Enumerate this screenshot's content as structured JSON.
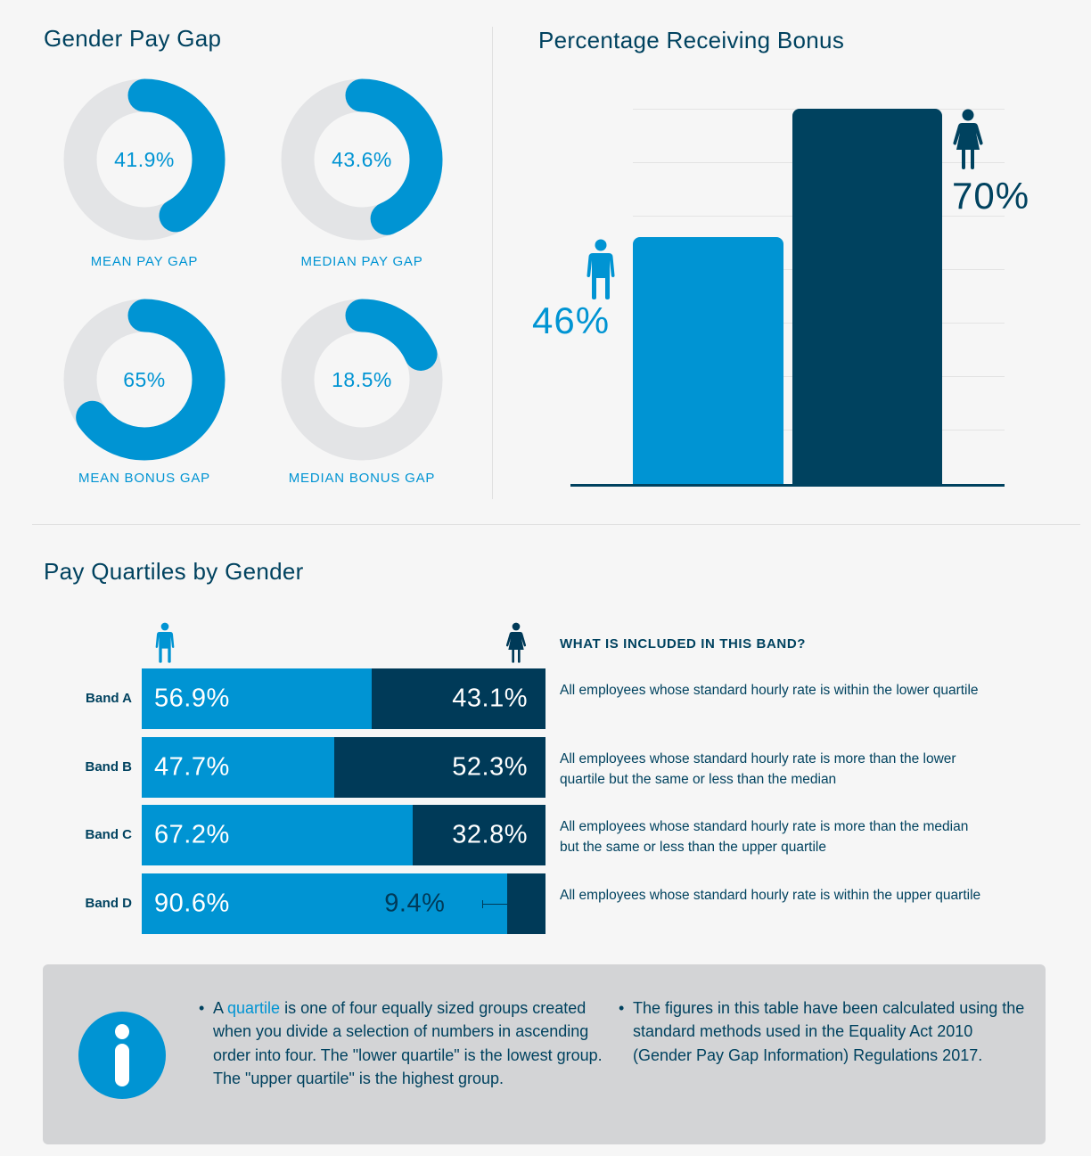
{
  "gender_pay_gap": {
    "title": "Gender Pay Gap",
    "donuts": [
      {
        "value": "41.9%",
        "label": "MEAN PAY GAP",
        "percent": 41.9
      },
      {
        "value": "43.6%",
        "label": "MEDIAN PAY GAP",
        "percent": 43.6
      },
      {
        "value": "65%",
        "label": "MEAN BONUS GAP",
        "percent": 65
      },
      {
        "value": "18.5%",
        "label": "MEDIAN BONUS GAP",
        "percent": 18.5
      }
    ]
  },
  "bonus": {
    "title": "Percentage Receiving Bonus",
    "male_value": "46%",
    "female_value": "70%"
  },
  "quartiles": {
    "title": "Pay Quartiles by Gender",
    "heading": "WHAT IS INCLUDED IN THIS BAND?",
    "bands": [
      {
        "label": "Band A",
        "male": "56.9%",
        "female": "43.1%",
        "male_pct": 56.9,
        "desc": "All employees whose standard hourly rate is within the lower quartile"
      },
      {
        "label": "Band B",
        "male": "47.7%",
        "female": "52.3%",
        "male_pct": 47.7,
        "desc": "All employees whose standard hourly rate is more than the lower quartile but the same or less than the median"
      },
      {
        "label": "Band C",
        "male": "67.2%",
        "female": "32.8%",
        "male_pct": 67.2,
        "desc": "All employees whose standard hourly rate is more than the median but the same or less than the upper quartile"
      },
      {
        "label": "Band D",
        "male": "90.6%",
        "female": "9.4%",
        "male_pct": 90.6,
        "desc": "All employees whose standard hourly rate is within the upper quartile"
      }
    ]
  },
  "info": {
    "left_prefix": "A ",
    "left_keyword": "quartile",
    "left_rest": " is one of four equally sized groups created when you divide a selection of numbers in ascending order into four. The \"lower quartile\" is the lowest group. The \"upper quartile\" is the highest group.",
    "right": "The figures in this table have been calculated using the standard methods used in the Equality Act 2010 (Gender Pay Gap Information) Regulations 2017.",
    "bullet": "•"
  },
  "colors": {
    "male": "#0094d3",
    "female": "#00425f",
    "track": "#e3e4e6",
    "background": "#f6f6f6"
  },
  "chart_data": [
    {
      "type": "pie",
      "title": "Gender Pay Gap",
      "categories": [
        "Mean Pay Gap",
        "Median Pay Gap",
        "Mean Bonus Gap",
        "Median Bonus Gap"
      ],
      "values": [
        41.9,
        43.6,
        65,
        18.5
      ],
      "unit": "%"
    },
    {
      "type": "bar",
      "title": "Percentage Receiving Bonus",
      "categories": [
        "Male",
        "Female"
      ],
      "values": [
        46,
        70
      ],
      "ylim": [
        0,
        70
      ],
      "grid": true,
      "xlabel": "",
      "ylabel": ""
    },
    {
      "type": "bar",
      "stacked": true,
      "orientation": "horizontal",
      "title": "Pay Quartiles by Gender",
      "categories": [
        "Band A",
        "Band B",
        "Band C",
        "Band D"
      ],
      "series": [
        {
          "name": "Male",
          "values": [
            56.9,
            47.7,
            67.2,
            90.6
          ]
        },
        {
          "name": "Female",
          "values": [
            43.1,
            52.3,
            32.8,
            9.4
          ]
        }
      ],
      "xlim": [
        0,
        100
      ]
    }
  ]
}
